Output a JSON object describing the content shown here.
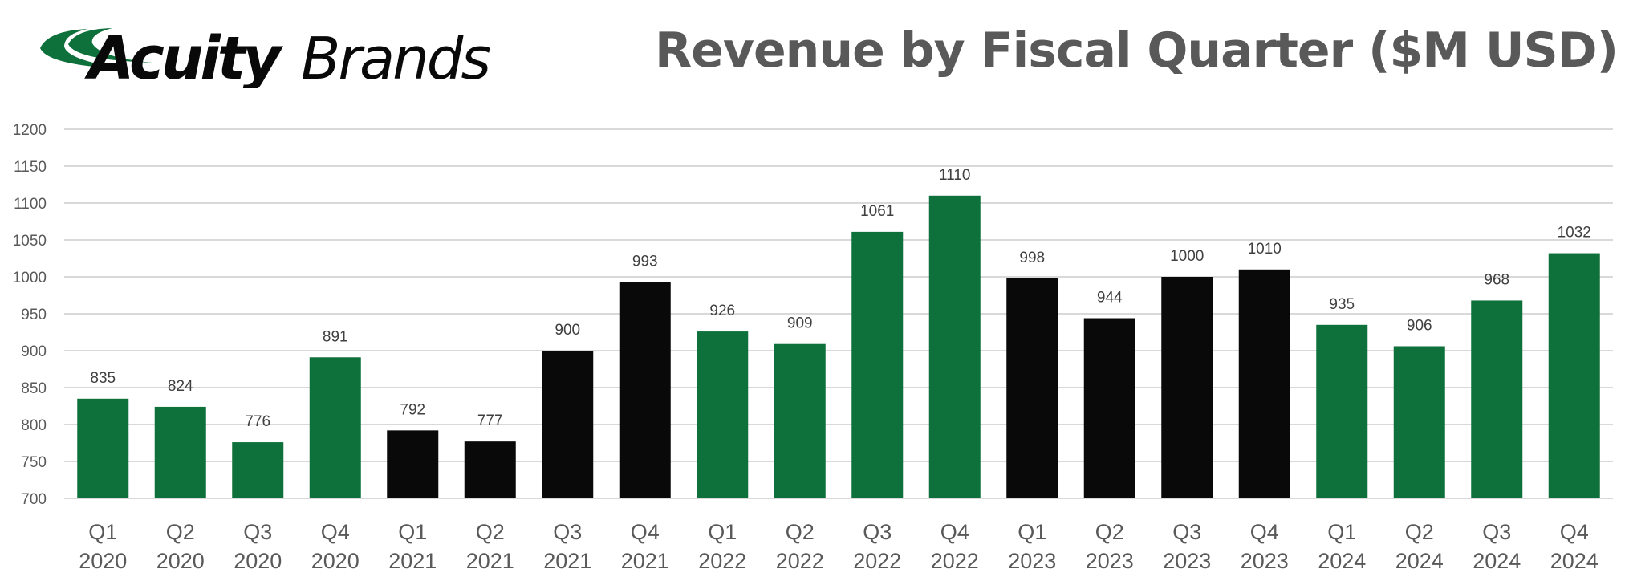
{
  "logo": {
    "text": "AcuityBrands",
    "part1": "Acuity",
    "part2": "Brands"
  },
  "chart_data": {
    "type": "bar",
    "title": "Revenue by Fiscal Quarter ($M USD)",
    "categories": [
      [
        "Q1",
        "2020"
      ],
      [
        "Q2",
        "2020"
      ],
      [
        "Q3",
        "2020"
      ],
      [
        "Q4",
        "2020"
      ],
      [
        "Q1",
        "2021"
      ],
      [
        "Q2",
        "2021"
      ],
      [
        "Q3",
        "2021"
      ],
      [
        "Q4",
        "2021"
      ],
      [
        "Q1",
        "2022"
      ],
      [
        "Q2",
        "2022"
      ],
      [
        "Q3",
        "2022"
      ],
      [
        "Q4",
        "2022"
      ],
      [
        "Q1",
        "2023"
      ],
      [
        "Q2",
        "2023"
      ],
      [
        "Q3",
        "2023"
      ],
      [
        "Q4",
        "2023"
      ],
      [
        "Q1",
        "2024"
      ],
      [
        "Q2",
        "2024"
      ],
      [
        "Q3",
        "2024"
      ],
      [
        "Q4",
        "2024"
      ]
    ],
    "values": [
      835,
      824,
      776,
      891,
      792,
      777,
      900,
      993,
      926,
      909,
      1061,
      1110,
      998,
      944,
      1000,
      1010,
      935,
      906,
      968,
      1032
    ],
    "bar_colors": [
      "#0e703a",
      "#0e703a",
      "#0e703a",
      "#0e703a",
      "#0a0909",
      "#0a0909",
      "#0a0909",
      "#0a0909",
      "#0e703a",
      "#0e703a",
      "#0e703a",
      "#0e703a",
      "#0a0909",
      "#0a0909",
      "#0a0909",
      "#0a0909",
      "#0e703a",
      "#0e703a",
      "#0e703a",
      "#0e703a"
    ],
    "yticks": [
      700,
      750,
      800,
      850,
      900,
      950,
      1000,
      1050,
      1100,
      1150,
      1200
    ],
    "ylim": [
      700,
      1200
    ],
    "xlabel": "",
    "ylabel": "",
    "grid": true,
    "data_labels": true
  }
}
